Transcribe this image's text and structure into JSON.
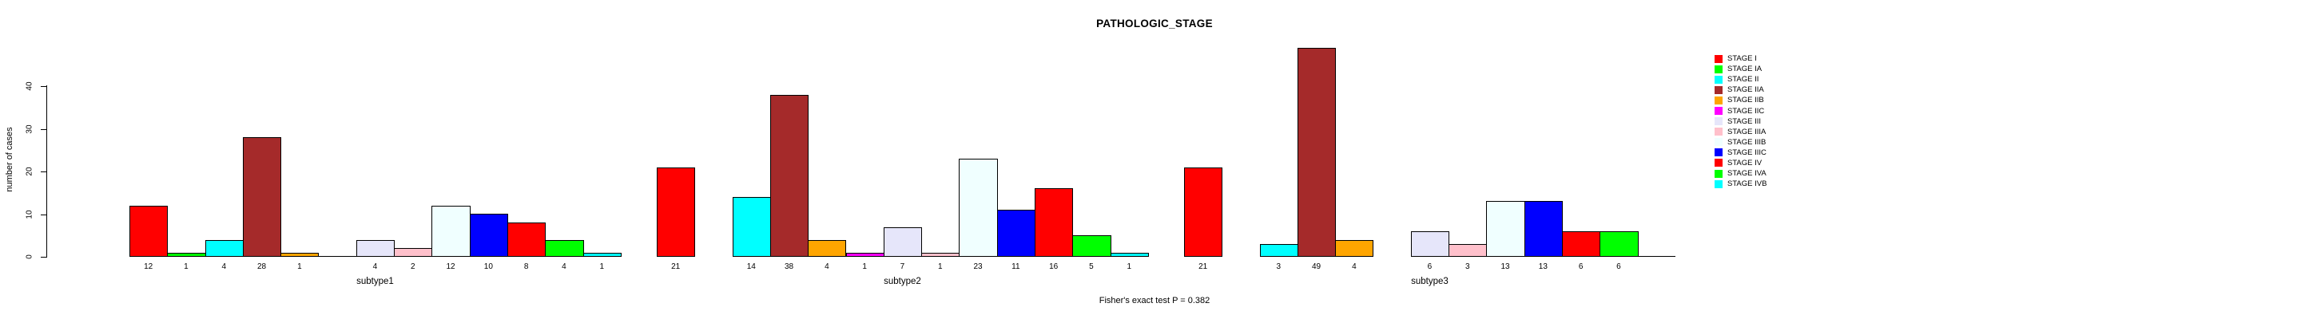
{
  "title": "PATHOLOGIC_STAGE",
  "footer": "Fisher's exact test P = 0.382",
  "ylabel": "number of cases",
  "chart_data": {
    "type": "bar",
    "title": "PATHOLOGIC_STAGE",
    "xlabel": "",
    "ylabel": "number of cases",
    "annotation": "Fisher's exact test P = 0.382",
    "grid": false,
    "legend_position": "right",
    "ylim": [
      0,
      49
    ],
    "yticks": [
      0,
      10,
      20,
      30,
      40
    ],
    "categories": [
      "subtype1",
      "subtype2",
      "subtype3"
    ],
    "series": [
      {
        "name": "STAGE I",
        "color": "#FF0000",
        "values": [
          12,
          21,
          21
        ]
      },
      {
        "name": "STAGE IA",
        "color": "#00FF00",
        "values": [
          1,
          null,
          null
        ]
      },
      {
        "name": "STAGE II",
        "color": "#00FFFF",
        "values": [
          4,
          14,
          3
        ]
      },
      {
        "name": "STAGE IIA",
        "color": "#A52A2A",
        "values": [
          28,
          38,
          49
        ]
      },
      {
        "name": "STAGE IIB",
        "color": "#FFA500",
        "values": [
          1,
          4,
          4
        ]
      },
      {
        "name": "STAGE IIC",
        "color": "#FF00FF",
        "values": [
          0,
          1,
          null
        ]
      },
      {
        "name": "STAGE III",
        "color": "#E6E6FA",
        "values": [
          4,
          7,
          6
        ]
      },
      {
        "name": "STAGE IIIA",
        "color": "#FFC0CB",
        "values": [
          2,
          1,
          3
        ]
      },
      {
        "name": "STAGE IIIB",
        "color": "#F0FFFF",
        "values": [
          12,
          23,
          13
        ]
      },
      {
        "name": "STAGE IIIC",
        "color": "#0000FF",
        "values": [
          10,
          11,
          13
        ]
      },
      {
        "name": "STAGE IV",
        "color": "#FF0000",
        "values": [
          8,
          16,
          6
        ]
      },
      {
        "name": "STAGE IVA",
        "color": "#00FF00",
        "values": [
          4,
          5,
          6
        ]
      },
      {
        "name": "STAGE IVB",
        "color": "#00FFFF",
        "values": [
          1,
          1,
          0
        ]
      }
    ]
  }
}
